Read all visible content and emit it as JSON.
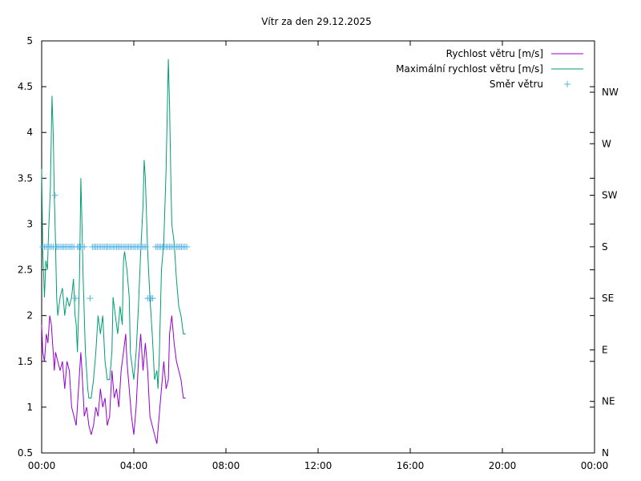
{
  "chart_data": {
    "type": "line",
    "title": "Vítr za den 29.12.2025",
    "x_range_hours": [
      0,
      24
    ],
    "x_ticks": [
      {
        "label": "00:00",
        "hour": 0
      },
      {
        "label": "04:00",
        "hour": 4
      },
      {
        "label": "08:00",
        "hour": 8
      },
      {
        "label": "12:00",
        "hour": 12
      },
      {
        "label": "16:00",
        "hour": 16
      },
      {
        "label": "20:00",
        "hour": 20
      },
      {
        "label": "00:00",
        "hour": 24
      }
    ],
    "y_range": [
      0.5,
      5
    ],
    "y_ticks": [
      "0.5",
      "1",
      "1.5",
      "2",
      "2.5",
      "3",
      "3.5",
      "4",
      "4.5",
      "5"
    ],
    "y2_ticks": [
      "N",
      "NE",
      "E",
      "SE",
      "S",
      "SW",
      "W",
      "NW"
    ],
    "grid": false,
    "legend_position": "top-right",
    "series": [
      {
        "name": "Rychlost větru [m/s]",
        "color": "#9400d3",
        "style": "line",
        "points": [
          [
            0.0,
            1.9
          ],
          [
            0.05,
            1.6
          ],
          [
            0.12,
            1.5
          ],
          [
            0.2,
            1.8
          ],
          [
            0.27,
            1.7
          ],
          [
            0.35,
            2.0
          ],
          [
            0.42,
            1.9
          ],
          [
            0.5,
            1.6
          ],
          [
            0.55,
            1.4
          ],
          [
            0.6,
            1.6
          ],
          [
            0.7,
            1.5
          ],
          [
            0.8,
            1.4
          ],
          [
            0.9,
            1.5
          ],
          [
            1.0,
            1.2
          ],
          [
            1.1,
            1.5
          ],
          [
            1.2,
            1.4
          ],
          [
            1.3,
            1.0
          ],
          [
            1.4,
            0.9
          ],
          [
            1.5,
            0.8
          ],
          [
            1.6,
            1.2
          ],
          [
            1.7,
            1.6
          ],
          [
            1.75,
            1.4
          ],
          [
            1.85,
            0.9
          ],
          [
            1.95,
            1.0
          ],
          [
            2.05,
            0.8
          ],
          [
            2.15,
            0.7
          ],
          [
            2.25,
            0.8
          ],
          [
            2.35,
            1.0
          ],
          [
            2.45,
            0.9
          ],
          [
            2.55,
            1.2
          ],
          [
            2.65,
            1.0
          ],
          [
            2.75,
            1.1
          ],
          [
            2.85,
            0.8
          ],
          [
            2.95,
            0.9
          ],
          [
            3.05,
            1.4
          ],
          [
            3.15,
            1.1
          ],
          [
            3.25,
            1.2
          ],
          [
            3.35,
            1.0
          ],
          [
            3.45,
            1.4
          ],
          [
            3.55,
            1.6
          ],
          [
            3.65,
            1.8
          ],
          [
            3.7,
            1.5
          ],
          [
            3.8,
            1.2
          ],
          [
            3.9,
            0.9
          ],
          [
            4.0,
            0.7
          ],
          [
            4.1,
            1.0
          ],
          [
            4.2,
            1.5
          ],
          [
            4.3,
            1.8
          ],
          [
            4.4,
            1.4
          ],
          [
            4.5,
            1.7
          ],
          [
            4.6,
            1.4
          ],
          [
            4.7,
            0.9
          ],
          [
            4.8,
            0.8
          ],
          [
            4.9,
            0.7
          ],
          [
            5.0,
            0.6
          ],
          [
            5.1,
            0.9
          ],
          [
            5.2,
            1.2
          ],
          [
            5.3,
            1.5
          ],
          [
            5.4,
            1.2
          ],
          [
            5.5,
            1.3
          ],
          [
            5.55,
            1.8
          ],
          [
            5.65,
            2.0
          ],
          [
            5.75,
            1.7
          ],
          [
            5.85,
            1.5
          ],
          [
            5.95,
            1.4
          ],
          [
            6.05,
            1.3
          ],
          [
            6.15,
            1.1
          ],
          [
            6.25,
            1.1
          ]
        ]
      },
      {
        "name": "Maximální rychlost větru [m/s]",
        "color": "#009e73",
        "style": "line",
        "points": [
          [
            0.0,
            3.6
          ],
          [
            0.05,
            2.7
          ],
          [
            0.12,
            2.2
          ],
          [
            0.18,
            2.6
          ],
          [
            0.25,
            2.5
          ],
          [
            0.3,
            2.9
          ],
          [
            0.38,
            3.4
          ],
          [
            0.45,
            4.4
          ],
          [
            0.5,
            4.0
          ],
          [
            0.55,
            3.3
          ],
          [
            0.6,
            2.8
          ],
          [
            0.65,
            2.2
          ],
          [
            0.7,
            2.0
          ],
          [
            0.8,
            2.2
          ],
          [
            0.9,
            2.3
          ],
          [
            1.0,
            2.0
          ],
          [
            1.1,
            2.2
          ],
          [
            1.2,
            2.1
          ],
          [
            1.3,
            2.2
          ],
          [
            1.38,
            2.4
          ],
          [
            1.45,
            2.0
          ],
          [
            1.5,
            1.9
          ],
          [
            1.55,
            1.6
          ],
          [
            1.6,
            2.0
          ],
          [
            1.65,
            2.5
          ],
          [
            1.7,
            3.5
          ],
          [
            1.75,
            3.0
          ],
          [
            1.8,
            2.4
          ],
          [
            1.85,
            2.0
          ],
          [
            1.9,
            1.6
          ],
          [
            2.0,
            1.2
          ],
          [
            2.05,
            1.1
          ],
          [
            2.15,
            1.1
          ],
          [
            2.25,
            1.3
          ],
          [
            2.35,
            1.6
          ],
          [
            2.45,
            2.0
          ],
          [
            2.55,
            1.8
          ],
          [
            2.65,
            2.0
          ],
          [
            2.75,
            1.5
          ],
          [
            2.85,
            1.3
          ],
          [
            2.95,
            1.3
          ],
          [
            3.05,
            1.6
          ],
          [
            3.1,
            2.2
          ],
          [
            3.2,
            2.0
          ],
          [
            3.3,
            1.8
          ],
          [
            3.4,
            2.1
          ],
          [
            3.5,
            1.9
          ],
          [
            3.55,
            2.6
          ],
          [
            3.6,
            2.7
          ],
          [
            3.7,
            2.5
          ],
          [
            3.8,
            2.2
          ],
          [
            3.85,
            1.6
          ],
          [
            3.9,
            1.5
          ],
          [
            4.0,
            1.3
          ],
          [
            4.1,
            1.6
          ],
          [
            4.2,
            2.1
          ],
          [
            4.3,
            2.7
          ],
          [
            4.4,
            3.2
          ],
          [
            4.45,
            3.7
          ],
          [
            4.5,
            3.5
          ],
          [
            4.6,
            2.7
          ],
          [
            4.7,
            2.2
          ],
          [
            4.8,
            1.8
          ],
          [
            4.9,
            1.3
          ],
          [
            5.0,
            1.4
          ],
          [
            5.05,
            1.2
          ],
          [
            5.1,
            1.5
          ],
          [
            5.15,
            2.0
          ],
          [
            5.2,
            2.5
          ],
          [
            5.3,
            2.8
          ],
          [
            5.4,
            3.6
          ],
          [
            5.45,
            4.2
          ],
          [
            5.5,
            4.8
          ],
          [
            5.55,
            4.3
          ],
          [
            5.6,
            3.6
          ],
          [
            5.65,
            3.0
          ],
          [
            5.75,
            2.8
          ],
          [
            5.85,
            2.4
          ],
          [
            5.95,
            2.1
          ],
          [
            6.05,
            2.0
          ],
          [
            6.15,
            1.8
          ],
          [
            6.25,
            1.8
          ]
        ]
      },
      {
        "name": "Směr větru",
        "color": "#56b4e9",
        "style": "points",
        "axis": "y2",
        "points": [
          [
            0.05,
            4
          ],
          [
            0.12,
            4
          ],
          [
            0.2,
            4
          ],
          [
            0.27,
            4
          ],
          [
            0.35,
            4
          ],
          [
            0.42,
            4
          ],
          [
            0.5,
            4
          ],
          [
            0.58,
            5
          ],
          [
            0.65,
            4
          ],
          [
            0.72,
            4
          ],
          [
            0.8,
            4
          ],
          [
            0.88,
            4
          ],
          [
            0.95,
            4
          ],
          [
            1.02,
            4
          ],
          [
            1.1,
            4
          ],
          [
            1.18,
            4
          ],
          [
            1.25,
            4
          ],
          [
            1.32,
            4
          ],
          [
            1.4,
            4
          ],
          [
            1.47,
            3
          ],
          [
            1.55,
            4
          ],
          [
            1.62,
            4
          ],
          [
            1.7,
            4
          ],
          [
            1.77,
            4
          ],
          [
            1.85,
            4
          ],
          [
            2.1,
            3
          ],
          [
            2.2,
            4
          ],
          [
            2.28,
            4
          ],
          [
            2.35,
            4
          ],
          [
            2.42,
            4
          ],
          [
            2.5,
            4
          ],
          [
            2.57,
            4
          ],
          [
            2.65,
            4
          ],
          [
            2.72,
            4
          ],
          [
            2.8,
            4
          ],
          [
            2.87,
            4
          ],
          [
            2.95,
            4
          ],
          [
            3.02,
            4
          ],
          [
            3.1,
            4
          ],
          [
            3.17,
            4
          ],
          [
            3.25,
            4
          ],
          [
            3.32,
            4
          ],
          [
            3.4,
            4
          ],
          [
            3.47,
            4
          ],
          [
            3.55,
            4
          ],
          [
            3.62,
            4
          ],
          [
            3.7,
            4
          ],
          [
            3.77,
            4
          ],
          [
            3.85,
            4
          ],
          [
            3.92,
            4
          ],
          [
            4.0,
            4
          ],
          [
            4.07,
            4
          ],
          [
            4.15,
            4
          ],
          [
            4.22,
            4
          ],
          [
            4.3,
            4
          ],
          [
            4.37,
            4
          ],
          [
            4.45,
            4
          ],
          [
            4.52,
            4
          ],
          [
            4.6,
            3
          ],
          [
            4.68,
            3
          ],
          [
            4.75,
            3
          ],
          [
            4.82,
            3
          ],
          [
            4.95,
            4
          ],
          [
            5.02,
            4
          ],
          [
            5.1,
            4
          ],
          [
            5.17,
            4
          ],
          [
            5.25,
            4
          ],
          [
            5.32,
            4
          ],
          [
            5.4,
            4
          ],
          [
            5.47,
            4
          ],
          [
            5.55,
            4
          ],
          [
            5.62,
            4
          ],
          [
            5.7,
            4
          ],
          [
            5.77,
            4
          ],
          [
            5.85,
            4
          ],
          [
            5.92,
            4
          ],
          [
            6.0,
            4
          ],
          [
            6.07,
            4
          ],
          [
            6.15,
            4
          ],
          [
            6.22,
            4
          ],
          [
            6.3,
            4
          ]
        ]
      }
    ]
  }
}
